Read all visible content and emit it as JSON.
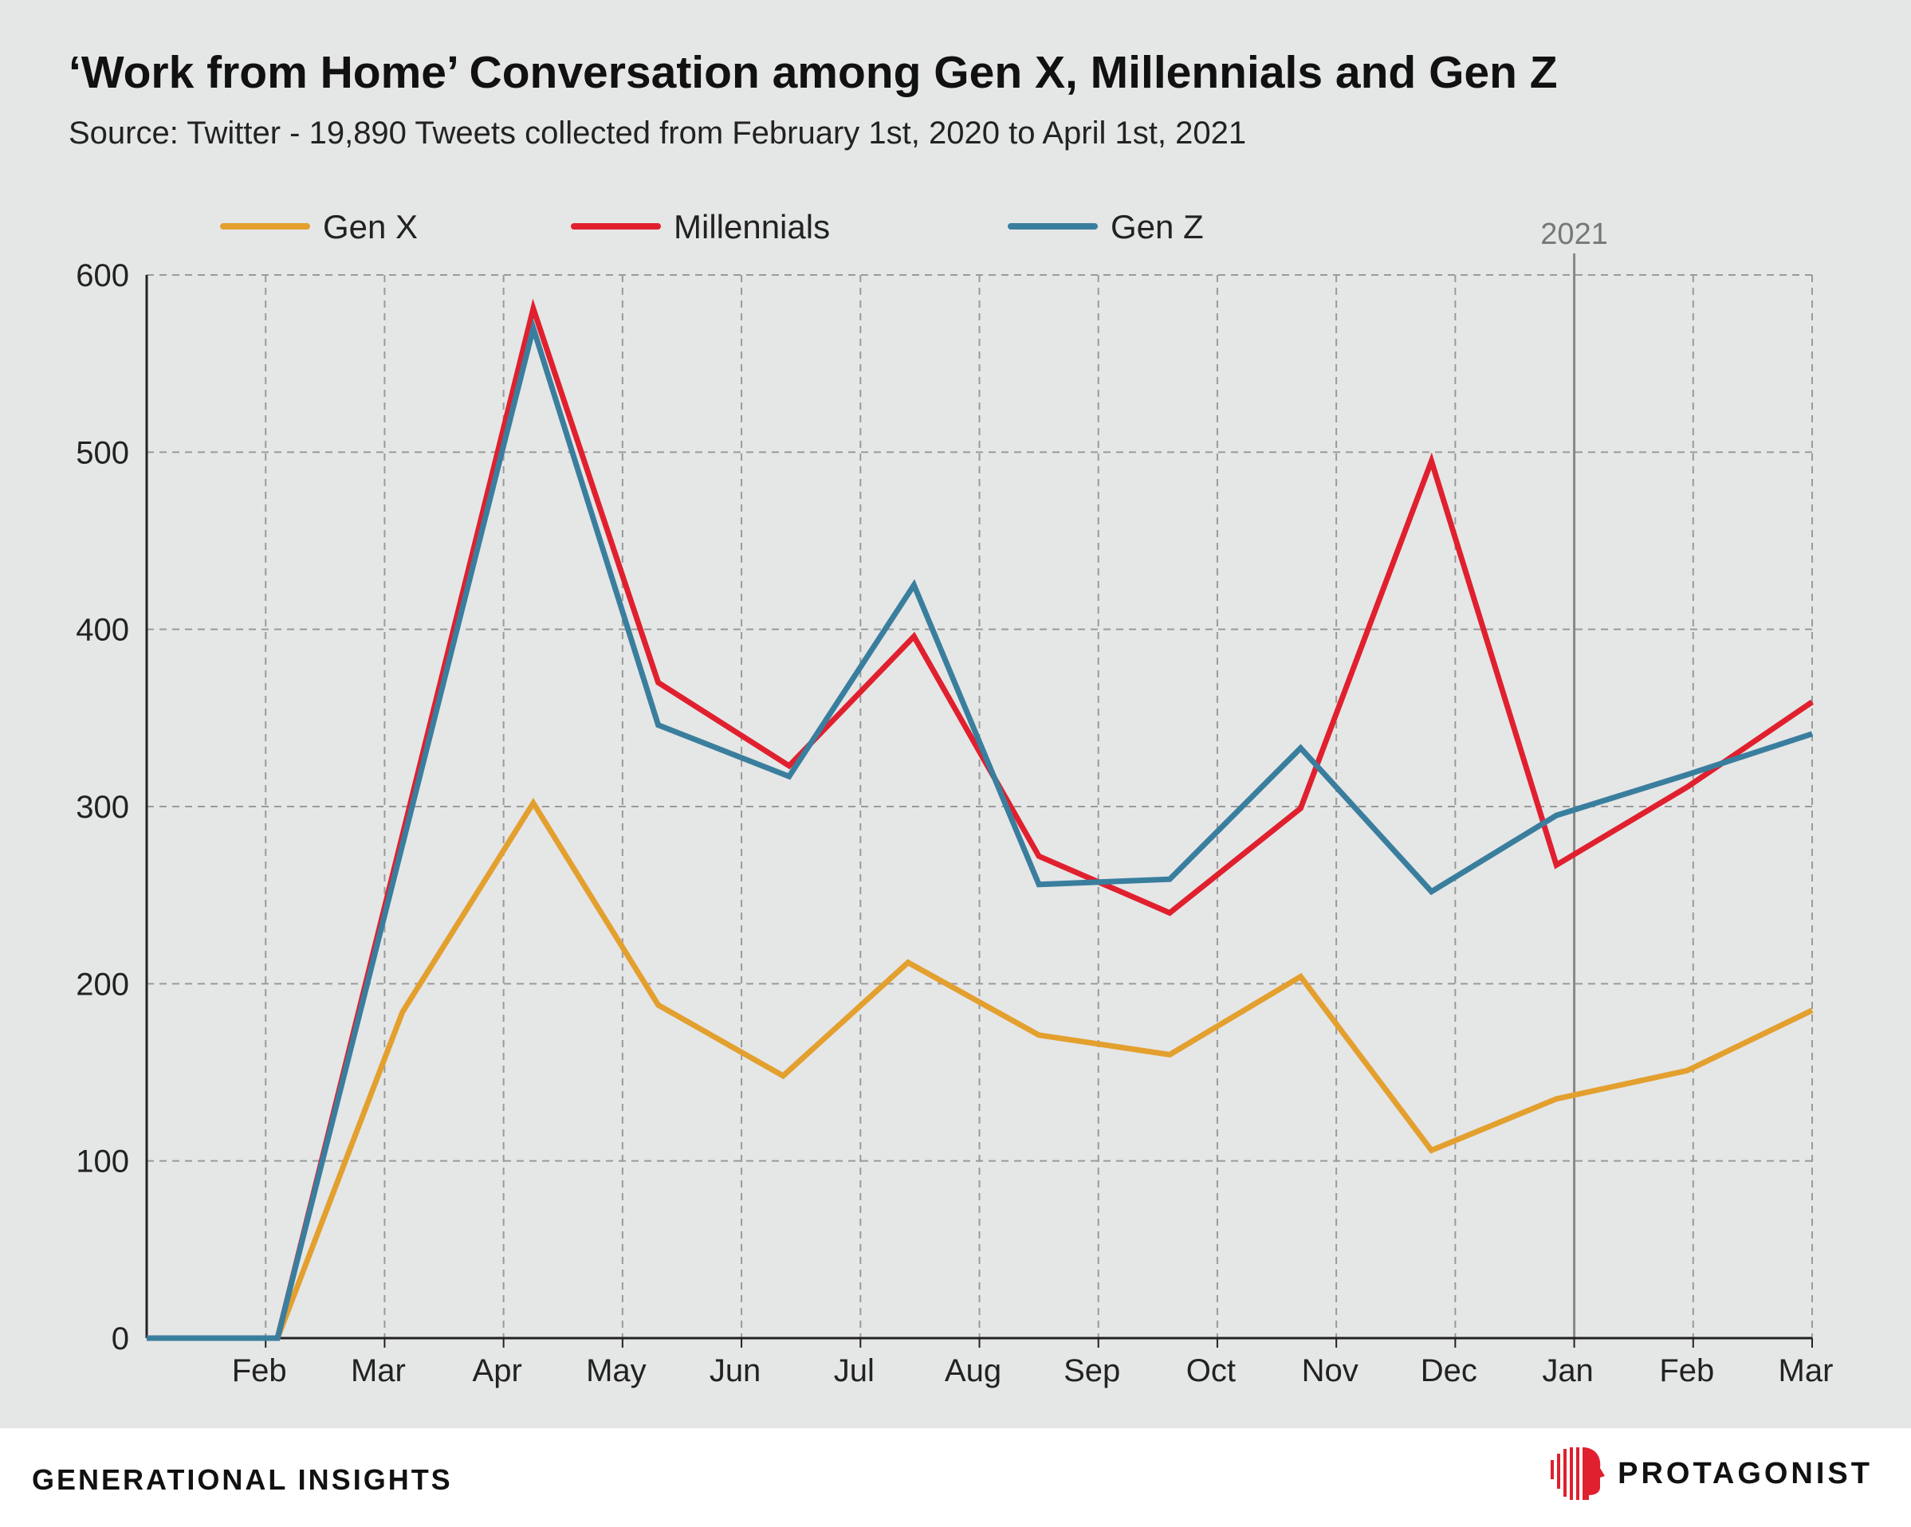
{
  "header": {
    "title": "‘Work from Home’ Conversation among Gen X, Millennials and Gen Z",
    "subtitle": "Source: Twitter - 19,890 Tweets collected from February 1st, 2020 to April 1st, 2021"
  },
  "footer": {
    "left_label": "GENERATIONAL INSIGHTS",
    "brand_name": "PROTAGONIST",
    "brand_color": "#e0202e"
  },
  "chart_data": {
    "type": "line",
    "title": "‘Work from Home’ Conversation among Gen X, Millennials and Gen Z",
    "subtitle": "Source: Twitter - 19,890 Tweets collected from February 1st, 2020 to April 1st, 2021",
    "x_tick_labels": [
      "Feb",
      "Mar",
      "Apr",
      "May",
      "Jun",
      "Jul",
      "Aug",
      "Sep",
      "Oct",
      "Nov",
      "Dec",
      "Jan",
      "Feb",
      "Mar"
    ],
    "x_range": [
      0,
      14
    ],
    "ylim": [
      0,
      600
    ],
    "y_ticks": [
      0,
      100,
      200,
      300,
      400,
      500,
      600
    ],
    "grid": true,
    "legend_position": "top",
    "reference_line": {
      "x": 12,
      "label": "2021",
      "color": "#888888"
    },
    "series": [
      {
        "name": "Gen X",
        "color": "#e3a02e",
        "points": [
          [
            0,
            0
          ],
          [
            1.1,
            0
          ],
          [
            2.15,
            184
          ],
          [
            3.25,
            302
          ],
          [
            4.3,
            188
          ],
          [
            5.35,
            148
          ],
          [
            6.4,
            212
          ],
          [
            7.5,
            171
          ],
          [
            8.6,
            160
          ],
          [
            9.7,
            204
          ],
          [
            10.8,
            106
          ],
          [
            11.85,
            135
          ],
          [
            12.95,
            151
          ],
          [
            14,
            185
          ]
        ]
      },
      {
        "name": "Millennials",
        "color": "#e0202e",
        "points": [
          [
            0,
            0
          ],
          [
            1.1,
            0
          ],
          [
            3.25,
            581
          ],
          [
            4.3,
            370
          ],
          [
            5.4,
            323
          ],
          [
            6.45,
            396
          ],
          [
            7.5,
            272
          ],
          [
            8.6,
            240
          ],
          [
            9.7,
            299
          ],
          [
            10.8,
            495
          ],
          [
            11.85,
            267
          ],
          [
            12.95,
            311
          ],
          [
            14,
            359
          ]
        ]
      },
      {
        "name": "Gen Z",
        "color": "#3a7e9e",
        "points": [
          [
            0,
            0
          ],
          [
            1.1,
            0
          ],
          [
            3.25,
            570
          ],
          [
            4.3,
            346
          ],
          [
            5.4,
            317
          ],
          [
            6.45,
            425
          ],
          [
            7.5,
            256
          ],
          [
            8.6,
            259
          ],
          [
            9.7,
            333
          ],
          [
            10.8,
            252
          ],
          [
            11.85,
            295
          ],
          [
            12.95,
            318
          ],
          [
            14,
            341
          ]
        ]
      }
    ]
  }
}
